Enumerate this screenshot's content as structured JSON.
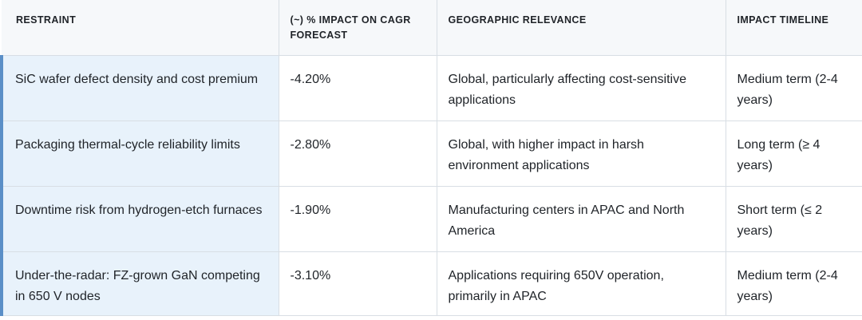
{
  "table": {
    "headers": [
      "RESTRAINT",
      "(~) % IMPACT ON CAGR FORECAST",
      "GEOGRAPHIC RELEVANCE",
      "IMPACT TIMELINE"
    ],
    "rows": [
      {
        "restraint": "SiC wafer defect density and cost premium",
        "impact": "-4.20%",
        "geography": "Global, particularly affecting cost-sensitive applications",
        "timeline": "Medium term (2-4 years)"
      },
      {
        "restraint": "Packaging thermal-cycle reliability limits",
        "impact": "-2.80%",
        "geography": "Global, with higher impact in harsh environment applications",
        "timeline": "Long term (≥ 4 years)"
      },
      {
        "restraint": "Downtime risk from hydrogen-etch furnaces",
        "impact": "-1.90%",
        "geography": "Manufacturing centers in APAC and North America",
        "timeline": "Short term (≤ 2 years)"
      },
      {
        "restraint": "Under-the-radar: FZ-grown GaN competing in 650 V nodes",
        "impact": "-3.10%",
        "geography": "Applications requiring 650V operation, primarily in APAC",
        "timeline": "Medium term (2-4 years)"
      }
    ]
  }
}
